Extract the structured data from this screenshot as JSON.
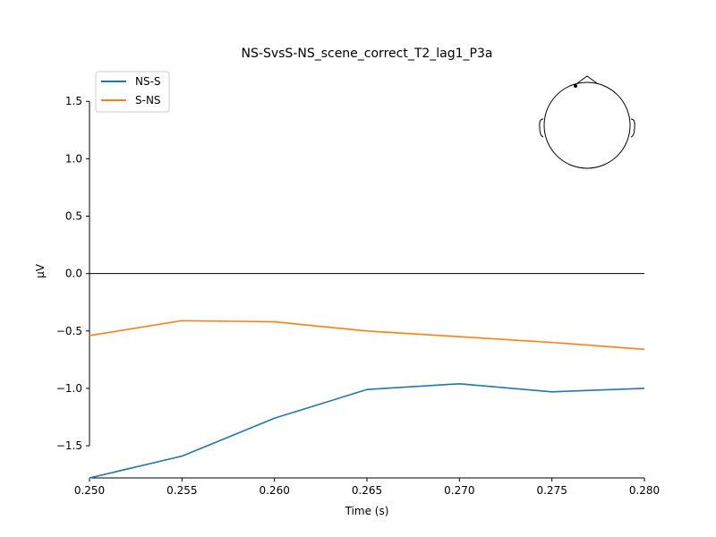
{
  "chart_data": {
    "type": "line",
    "title": "NS-SvsS-NS_scene_correct_T2_lag1_P3a",
    "xlabel": "Time (s)",
    "ylabel": "µV",
    "xlim": [
      0.25,
      0.28
    ],
    "ylim": [
      -1.78,
      1.72
    ],
    "x_ticks": [
      0.25,
      0.255,
      0.26,
      0.265,
      0.27,
      0.275,
      0.28
    ],
    "x_tick_labels": [
      "0.250",
      "0.255",
      "0.260",
      "0.265",
      "0.270",
      "0.275",
      "0.280"
    ],
    "y_ticks": [
      -1.5,
      -1.0,
      -0.5,
      0.0,
      0.5,
      1.0,
      1.5
    ],
    "y_tick_labels": [
      "−1.5",
      "−1.0",
      "−0.5",
      "0.0",
      "0.5",
      "1.0",
      "1.5"
    ],
    "zero_line": true,
    "grid": false,
    "legend_position": "top-left",
    "x": [
      0.25,
      0.255,
      0.26,
      0.265,
      0.27,
      0.275,
      0.28
    ],
    "series": [
      {
        "name": "NS-S",
        "color": "#1f77b4",
        "values": [
          -1.78,
          -1.59,
          -1.26,
          -1.01,
          -0.96,
          -1.03,
          -1.0
        ]
      },
      {
        "name": "S-NS",
        "color": "#ff7f0e",
        "values": [
          -0.54,
          -0.41,
          -0.42,
          -0.5,
          -0.55,
          -0.6,
          -0.66
        ]
      }
    ],
    "inset": {
      "type": "head-sensor-map",
      "icon": "head-outline-icon"
    }
  }
}
